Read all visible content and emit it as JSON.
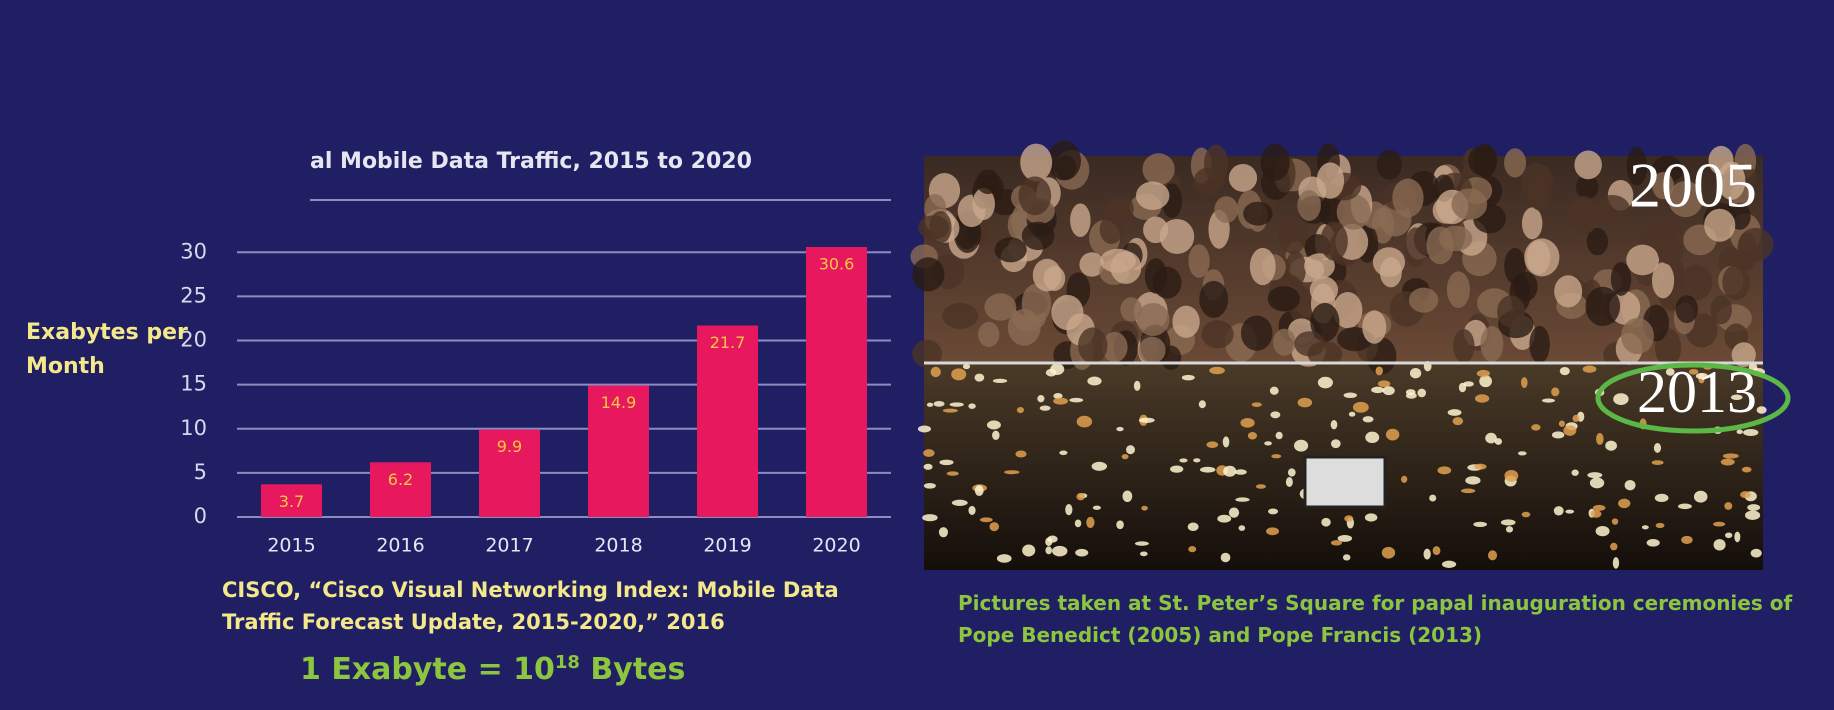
{
  "chart_data": {
    "type": "bar",
    "title": "al Mobile Data Traffic, 2015 to 2020",
    "y_label": "Exabytes per Month",
    "categories": [
      "2015",
      "2016",
      "2017",
      "2018",
      "2019",
      "2020"
    ],
    "values": [
      3.7,
      6.2,
      9.9,
      14.9,
      21.7,
      30.6
    ],
    "color": "#e8185f",
    "value_label_color": "#f5c842",
    "ylim": [
      0,
      30.6
    ],
    "yticks": [
      0,
      5,
      10,
      15,
      20,
      25,
      30
    ],
    "grid": true,
    "source": "CISCO, “Cisco Visual Networking Index: Mobile Data Traffic Forecast Update, 2015-2020,” 2016",
    "note": {
      "text": "1 Exabyte = 10",
      "superscript": "18",
      "unit": "Bytes"
    }
  },
  "photos": {
    "top_label": "2005",
    "bottom_label": "2013",
    "caption": "Pictures taken at St. Peter’s Square for papal inauguration ceremonies of Pope Benedict (2005) and Pope Francis (2013)"
  }
}
